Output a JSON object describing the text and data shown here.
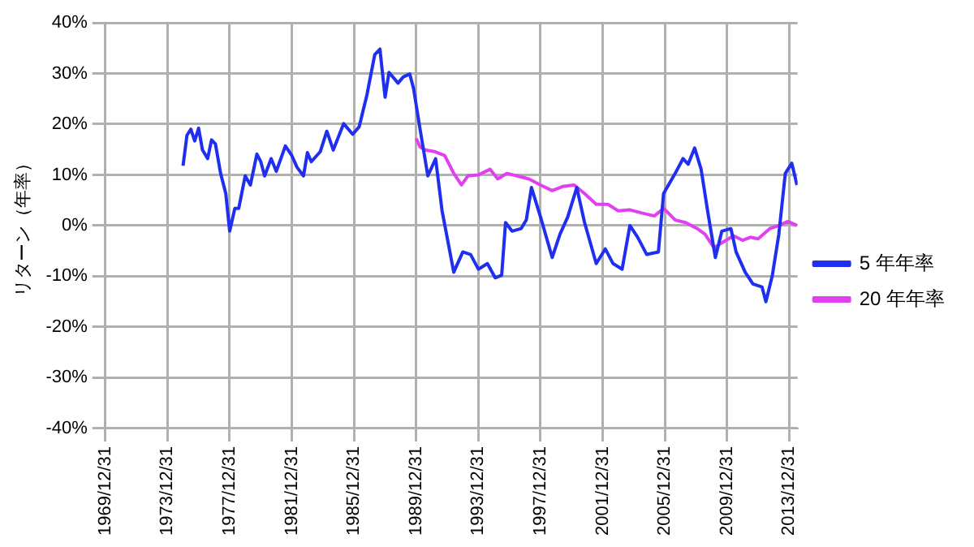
{
  "chart_data": {
    "type": "line",
    "ylabel": "リターン（年率）",
    "xlim": [
      "1969-12-31",
      "2014-07-15"
    ],
    "xticks": [
      {
        "value": "1969-12-31",
        "label": "1969/12/31"
      },
      {
        "value": "1973-12-31",
        "label": "1973/12/31"
      },
      {
        "value": "1977-12-31",
        "label": "1977/12/31"
      },
      {
        "value": "1981-12-31",
        "label": "1981/12/31"
      },
      {
        "value": "1985-12-31",
        "label": "1985/12/31"
      },
      {
        "value": "1989-12-31",
        "label": "1989/12/31"
      },
      {
        "value": "1993-12-31",
        "label": "1993/12/31"
      },
      {
        "value": "1997-12-31",
        "label": "1997/12/31"
      },
      {
        "value": "2001-12-31",
        "label": "2001/12/31"
      },
      {
        "value": "2005-12-31",
        "label": "2005/12/31"
      },
      {
        "value": "2009-12-31",
        "label": "2009/12/31"
      },
      {
        "value": "2013-12-31",
        "label": "2013/12/31"
      }
    ],
    "ylim": [
      -40,
      40
    ],
    "yticks": [
      {
        "value": -40,
        "label": "-40%"
      },
      {
        "value": -30,
        "label": "-30%"
      },
      {
        "value": -20,
        "label": "-20%"
      },
      {
        "value": -10,
        "label": "-10%"
      },
      {
        "value": 0,
        "label": "0%"
      },
      {
        "value": 10,
        "label": "10%"
      },
      {
        "value": 20,
        "label": "20%"
      },
      {
        "value": 30,
        "label": "30%"
      },
      {
        "value": 40,
        "label": "40%"
      }
    ],
    "grid": true,
    "legend": "right",
    "marker": "none",
    "line_style": "solid",
    "series": [
      {
        "name": "5 年年率",
        "color": "#1f2ff0",
        "x": [
          "1975-01",
          "1975-04",
          "1975-07",
          "1975-10",
          "1976-01",
          "1976-04",
          "1976-08",
          "1976-11",
          "1977-02",
          "1977-06",
          "1977-10",
          "1978-01",
          "1978-05",
          "1978-08",
          "1979-01",
          "1979-05",
          "1979-10",
          "1980-01",
          "1980-04",
          "1980-09",
          "1981-01",
          "1981-08",
          "1982-01",
          "1982-05",
          "1982-10",
          "1983-01",
          "1983-04",
          "1983-11",
          "1984-04",
          "1984-09",
          "1985-05",
          "1985-12",
          "1986-05",
          "1986-11",
          "1987-05",
          "1987-09",
          "1988-01",
          "1988-04",
          "1988-11",
          "1989-03",
          "1989-08",
          "1989-11",
          "1990-04",
          "1990-10",
          "1991-04",
          "1991-09",
          "1992-06",
          "1993-01",
          "1993-07",
          "1994-01",
          "1994-08",
          "1995-02",
          "1995-07",
          "1995-10",
          "1996-03",
          "1996-10",
          "1997-02",
          "1997-06",
          "1998-01",
          "1998-10",
          "1999-04",
          "1999-10",
          "2000-05",
          "2000-11",
          "2001-08",
          "2002-03",
          "2002-09",
          "2003-04",
          "2003-10",
          "2004-04",
          "2004-11",
          "2005-08",
          "2005-12",
          "2006-09",
          "2007-03",
          "2007-07",
          "2007-12",
          "2008-05",
          "2008-10",
          "2009-04",
          "2009-09",
          "2010-04",
          "2010-08",
          "2011-03",
          "2011-09",
          "2012-04",
          "2012-07",
          "2012-12",
          "2013-05",
          "2013-10",
          "2014-03",
          "2014-07"
        ],
        "values": [
          11.8,
          17.8,
          19,
          16.7,
          19.2,
          14.9,
          13.2,
          16.9,
          16.1,
          10.3,
          6.3,
          -1.1,
          3.4,
          3.4,
          9.8,
          8,
          14.1,
          12.6,
          9.8,
          13.2,
          10.7,
          15.7,
          13.8,
          11.5,
          9.8,
          14.4,
          12.6,
          14.6,
          18.6,
          14.9,
          20.1,
          18,
          19.5,
          25.8,
          33.7,
          34.8,
          25.3,
          30.2,
          28.1,
          29.3,
          29.9,
          27,
          19,
          9.8,
          13.2,
          2.9,
          -9.2,
          -5.2,
          -5.7,
          -8.6,
          -7.5,
          -10.3,
          -9.8,
          0.6,
          -1.1,
          -0.6,
          1.1,
          7.5,
          1.7,
          -6.3,
          -1.7,
          1.7,
          7.5,
          0.6,
          -7.5,
          -4.6,
          -7.5,
          -8.6,
          0,
          -2.3,
          -5.7,
          -5.2,
          6.3,
          10.3,
          13.2,
          12.1,
          15.3,
          11.1,
          2.9,
          -6.3,
          -1.1,
          -0.6,
          -5.2,
          -9.2,
          -11.5,
          -12.1,
          -15,
          -9.8,
          -1.7,
          10.3,
          12.3,
          8.0
        ]
      },
      {
        "name": "20 年年率",
        "color": "#e040f0",
        "x": [
          "1990-01",
          "1990-04",
          "1990-08",
          "1991-03",
          "1991-11",
          "1992-06",
          "1992-12",
          "1993-05",
          "1994-01",
          "1994-10",
          "1995-04",
          "1995-11",
          "1996-07",
          "1997-04",
          "1998-01",
          "1998-10",
          "1999-06",
          "2000-03",
          "2000-11",
          "2001-08",
          "2002-05",
          "2003-01",
          "2003-10",
          "2004-07",
          "2005-05",
          "2005-12",
          "2006-09",
          "2007-05",
          "2008-02",
          "2008-08",
          "2009-03",
          "2009-09",
          "2010-06",
          "2011-01",
          "2011-07",
          "2012-01",
          "2012-10",
          "2013-05",
          "2013-12",
          "2014-07"
        ],
        "values": [
          17.2,
          15.5,
          14.9,
          14.6,
          13.8,
          10.3,
          8.0,
          9.8,
          10,
          11.1,
          9.2,
          10.3,
          9.8,
          9.2,
          8,
          6.9,
          7.7,
          8,
          6.3,
          4.2,
          4.2,
          2.9,
          3.1,
          2.5,
          1.9,
          3.4,
          1.1,
          0.6,
          -0.6,
          -1.7,
          -4.4,
          -3.4,
          -2,
          -2.9,
          -2.3,
          -2.6,
          -0.6,
          0,
          0.8,
          0
        ]
      }
    ]
  }
}
